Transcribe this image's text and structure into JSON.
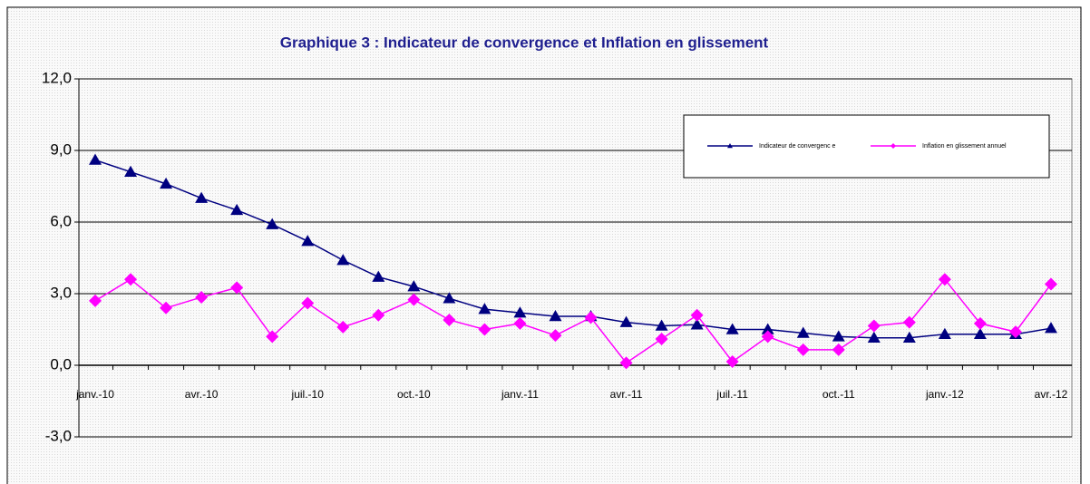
{
  "chart_data": {
    "type": "line",
    "title": "Graphique 3 : Indicateur de convergence et Inflation en glissement",
    "categories": [
      "janv.-10",
      null,
      null,
      "avr.-10",
      null,
      null,
      "juil.-10",
      null,
      null,
      "oct.-10",
      null,
      null,
      "janv.-11",
      null,
      null,
      "avr.-11",
      null,
      null,
      "juil.-11",
      null,
      null,
      "oct.-11",
      null,
      null,
      "janv.-12",
      null,
      null,
      "avr.-12"
    ],
    "series": [
      {
        "name": "Indicateur  de convergenc e",
        "color": "#000080",
        "marker": "triangle",
        "values": [
          8.6,
          8.1,
          7.6,
          7.0,
          6.5,
          5.9,
          5.2,
          4.4,
          3.7,
          3.3,
          2.8,
          2.35,
          2.2,
          2.05,
          2.05,
          1.8,
          1.65,
          1.7,
          1.5,
          1.5,
          1.35,
          1.2,
          1.15,
          1.15,
          1.3,
          1.3,
          1.3,
          1.55
        ]
      },
      {
        "name": "Inflation  en glissement    annuel",
        "color": "#ff00ff",
        "marker": "diamond",
        "values": [
          2.7,
          3.6,
          2.4,
          2.85,
          3.25,
          1.2,
          2.6,
          1.6,
          2.1,
          2.75,
          1.9,
          1.5,
          1.75,
          1.25,
          2.0,
          0.1,
          1.1,
          2.1,
          0.15,
          1.2,
          0.65,
          0.65,
          1.65,
          1.8,
          3.6,
          1.75,
          1.4,
          3.4
        ]
      }
    ],
    "ylim": [
      -3,
      12
    ],
    "yticks": [
      {
        "value": -3,
        "label": "-3,0"
      },
      {
        "value": 0,
        "label": "0,0"
      },
      {
        "value": 3,
        "label": "3,0"
      },
      {
        "value": 6,
        "label": "6,0"
      },
      {
        "value": 9,
        "label": "9,0"
      },
      {
        "value": 12,
        "label": "12,0"
      }
    ],
    "grid": true,
    "legend": "top-right"
  }
}
